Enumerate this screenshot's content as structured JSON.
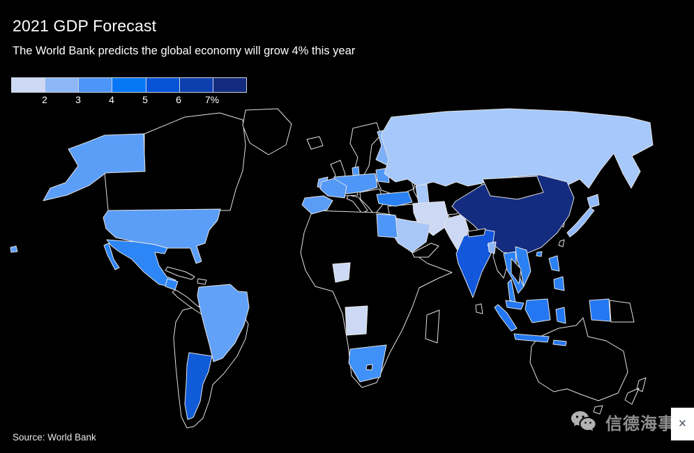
{
  "header": {
    "title": "2021 GDP Forecast",
    "subtitle": "The World Bank predicts the global economy will grow 4% this year"
  },
  "legend": {
    "ticks": [
      "2",
      "3",
      "4",
      "5",
      "6",
      "7%"
    ],
    "colors": [
      "#cdd9f4",
      "#8eb7f8",
      "#4d95f7",
      "#0877f6",
      "#0753d6",
      "#0d3fae",
      "#142a7d"
    ]
  },
  "source": {
    "label": "Source: World Bank"
  },
  "watermark": {
    "brand": "信德海事",
    "close_label": "×",
    "icon": "wechat-icon",
    "color": "#8f8f8f"
  },
  "map": {
    "stroke": "#e3e3e3",
    "no_data_fill": "#000000",
    "countries": [
      {
        "id": "canada",
        "name": "Canada",
        "fill": null
      },
      {
        "id": "greenland",
        "name": "Greenland",
        "fill": null
      },
      {
        "id": "iceland",
        "name": "Iceland",
        "fill": null
      },
      {
        "id": "uk",
        "name": "United Kingdom",
        "fill": null
      },
      {
        "id": "scandinavia",
        "name": "Norway / Sweden",
        "fill": null
      },
      {
        "id": "italy",
        "name": "Italy",
        "fill": null
      },
      {
        "id": "alps",
        "name": "Switzerland / Austria",
        "fill": null
      },
      {
        "id": "balkans",
        "name": "Balkans / Greece",
        "fill": null
      },
      {
        "id": "east_europe",
        "name": "Belarus / Ukraine / Romania",
        "fill": null
      },
      {
        "id": "levant",
        "name": "Syria / Iraq",
        "fill": null
      },
      {
        "id": "afghanistan",
        "name": "Afghanistan",
        "fill": null
      },
      {
        "id": "centralasia",
        "name": "Kazakhstan / Central Asia",
        "fill": null
      },
      {
        "id": "korea",
        "name": "Korea",
        "fill": null
      },
      {
        "id": "africa",
        "name": "Africa (no data)",
        "fill": null
      },
      {
        "id": "madagascar",
        "name": "Madagascar",
        "fill": null
      },
      {
        "id": "yemen_oman",
        "name": "Yemen / Oman",
        "fill": null
      },
      {
        "id": "samerica",
        "name": "South America (no data)",
        "fill": null
      },
      {
        "id": "cuba",
        "name": "Cuba",
        "fill": null
      },
      {
        "id": "hispaniola",
        "name": "Hispaniola",
        "fill": null
      },
      {
        "id": "camerica",
        "name": "Central America (no data)",
        "fill": null
      },
      {
        "id": "australia",
        "name": "Australia",
        "fill": null
      },
      {
        "id": "tasmania",
        "name": "Tasmania",
        "fill": null
      },
      {
        "id": "nz",
        "name": "New Zealand",
        "fill": null
      },
      {
        "id": "png",
        "name": "Papua New Guinea",
        "fill": null
      },
      {
        "id": "srilanka",
        "name": "Sri Lanka",
        "fill": null
      },
      {
        "id": "taiwan",
        "name": "Taiwan",
        "fill": null
      },
      {
        "id": "myanmar",
        "name": "Myanmar",
        "fill": null
      },
      {
        "id": "alaska",
        "name": "United States (Alaska)",
        "fill": "#5b9ef8",
        "bucket": "3-4%"
      },
      {
        "id": "hawaii",
        "name": "United States (Hawaii)",
        "fill": "#5b9ef8",
        "bucket": "3-4%"
      },
      {
        "id": "usa",
        "name": "United States",
        "fill": "#5b9ef8",
        "bucket": "3-4%"
      },
      {
        "id": "mexico",
        "name": "Mexico",
        "fill": "#2e86f6",
        "bucket": "4-5%"
      },
      {
        "id": "guatemala",
        "name": "Guatemala",
        "fill": "#2e86f6",
        "bucket": "4-5%"
      },
      {
        "id": "brazil",
        "name": "Brazil",
        "fill": "#62a1f8",
        "bucket": "3-4%"
      },
      {
        "id": "argentina",
        "name": "Argentina",
        "fill": "#105bd8",
        "bucket": "5-6%"
      },
      {
        "id": "ireland",
        "name": "Ireland",
        "fill": "#6aa5f8",
        "bucket": "3-4%"
      },
      {
        "id": "finland",
        "name": "Finland",
        "fill": "#7db0f8",
        "bucket": "2-3%"
      },
      {
        "id": "baltics",
        "name": "Baltic states",
        "fill": "#4e96f7",
        "bucket": "3-4%"
      },
      {
        "id": "ceurope",
        "name": "Germany / Poland / Benelux / Denmark",
        "fill": "#4e96f7",
        "bucket": "3-4%"
      },
      {
        "id": "france",
        "name": "France",
        "fill": "#5599f7",
        "bucket": "3-4%"
      },
      {
        "id": "iberia",
        "name": "Spain / Portugal",
        "fill": "#5b9cf7",
        "bucket": "3-4%"
      },
      {
        "id": "russia",
        "name": "Russia",
        "fill": "#a6c8fa",
        "bucket": "2-3%"
      },
      {
        "id": "caspian",
        "name": "Caspian (rendered)",
        "fill": "#a6c8fa"
      },
      {
        "id": "turkey",
        "name": "Turkey",
        "fill": "#2b81f3",
        "bucket": "4-5%"
      },
      {
        "id": "iran",
        "name": "Iran",
        "fill": "#cdd9f4",
        "bucket": "<2%"
      },
      {
        "id": "pakistan",
        "name": "Pakistan",
        "fill": "#cdd9f4",
        "bucket": "<2%"
      },
      {
        "id": "saudi",
        "name": "Saudi Arabia",
        "fill": "#a9c6f8",
        "bucket": "2-3%"
      },
      {
        "id": "egypt",
        "name": "Egypt",
        "fill": "#4e96f7",
        "bucket": "3-4%"
      },
      {
        "id": "nigeria",
        "name": "Nigeria",
        "fill": "#cdd9f4",
        "bucket": "<2%"
      },
      {
        "id": "angola",
        "name": "Angola",
        "fill": "#cdd9f4",
        "bucket": "<2%"
      },
      {
        "id": "southafrica",
        "name": "South Africa",
        "fill": "#3f90f7",
        "bucket": "3-4%"
      },
      {
        "id": "kyrgyzstan",
        "name": "Kyrgyzstan",
        "fill": "#1f6ce8",
        "bucket": "4-5%"
      },
      {
        "id": "china",
        "name": "China",
        "fill": "#132c80",
        "bucket": ">7%"
      },
      {
        "id": "hainan",
        "name": "Hainan (island)",
        "fill": "#2b81f3",
        "bucket": "4-5%"
      },
      {
        "id": "india",
        "name": "India",
        "fill": "#1257dc",
        "bucket": "5-6%"
      },
      {
        "id": "bangladesh",
        "name": "Bangladesh",
        "fill": "#8eb6f7",
        "bucket": "2-3%"
      },
      {
        "id": "japan",
        "name": "Japan",
        "fill": "#93baf8",
        "bucket": "2-3%"
      },
      {
        "id": "thailand",
        "name": "Thailand",
        "fill": "#2b81f3",
        "bucket": "4-5%"
      },
      {
        "id": "vietnam",
        "name": "Vietnam",
        "fill": "#2b81f3",
        "bucket": "4-5%"
      },
      {
        "id": "malaysia",
        "name": "Malaysia",
        "fill": "#2377f2",
        "bucket": "4-5%"
      },
      {
        "id": "indonesia",
        "name": "Indonesia",
        "fill": "#2377f2",
        "bucket": "4-5%"
      },
      {
        "id": "philippines",
        "name": "Philippines",
        "fill": "#2b81f3",
        "bucket": "4-5%"
      },
      {
        "id": "mongolia",
        "name": "Mongolia",
        "fill": null
      },
      {
        "id": "nepal",
        "name": "Nepal",
        "fill": null
      },
      {
        "id": "lesotho",
        "name": "Lesotho",
        "fill": null
      },
      {
        "id": "laos_cambodia",
        "name": "Laos / Cambodia",
        "fill": null
      }
    ]
  },
  "chart_data": {
    "type": "heatmap",
    "subtype": "world-choropleth",
    "title": "2021 GDP Forecast",
    "subtitle": "The World Bank predicts the global economy will grow 4% this year",
    "unit": "% GDP growth",
    "legend_breaks": [
      2,
      3,
      4,
      5,
      6,
      7
    ],
    "legend_position": "top-left",
    "no_data_color": "#000000",
    "countries": [
      {
        "name": "United States",
        "growth_bucket": "3-4%"
      },
      {
        "name": "Mexico",
        "growth_bucket": "4-5%"
      },
      {
        "name": "Guatemala",
        "growth_bucket": "4-5%"
      },
      {
        "name": "Brazil",
        "growth_bucket": "3-4%"
      },
      {
        "name": "Argentina",
        "growth_bucket": "5-6%"
      },
      {
        "name": "Ireland",
        "growth_bucket": "3-4%"
      },
      {
        "name": "France",
        "growth_bucket": "3-4%"
      },
      {
        "name": "Spain / Portugal",
        "growth_bucket": "3-4%"
      },
      {
        "name": "Germany / Poland / Benelux / Denmark",
        "growth_bucket": "3-4%"
      },
      {
        "name": "Baltic states",
        "growth_bucket": "3-4%"
      },
      {
        "name": "Finland",
        "growth_bucket": "2-3%"
      },
      {
        "name": "Russia",
        "growth_bucket": "2-3%"
      },
      {
        "name": "Turkey",
        "growth_bucket": "4-5%"
      },
      {
        "name": "Iran",
        "growth_bucket": "<2%"
      },
      {
        "name": "Saudi Arabia",
        "growth_bucket": "2-3%"
      },
      {
        "name": "Egypt",
        "growth_bucket": "3-4%"
      },
      {
        "name": "Nigeria",
        "growth_bucket": "<2%"
      },
      {
        "name": "Angola",
        "growth_bucket": "<2%"
      },
      {
        "name": "South Africa",
        "growth_bucket": "3-4%"
      },
      {
        "name": "Pakistan",
        "growth_bucket": "<2%"
      },
      {
        "name": "India",
        "growth_bucket": "5-6%"
      },
      {
        "name": "Bangladesh",
        "growth_bucket": "2-3%"
      },
      {
        "name": "China",
        "growth_bucket": ">7%"
      },
      {
        "name": "Japan",
        "growth_bucket": "2-3%"
      },
      {
        "name": "Kyrgyzstan",
        "growth_bucket": "4-5%"
      },
      {
        "name": "Thailand",
        "growth_bucket": "4-5%"
      },
      {
        "name": "Vietnam",
        "growth_bucket": "4-5%"
      },
      {
        "name": "Malaysia",
        "growth_bucket": "4-5%"
      },
      {
        "name": "Indonesia",
        "growth_bucket": "4-5%"
      },
      {
        "name": "Philippines",
        "growth_bucket": "4-5%"
      }
    ]
  }
}
